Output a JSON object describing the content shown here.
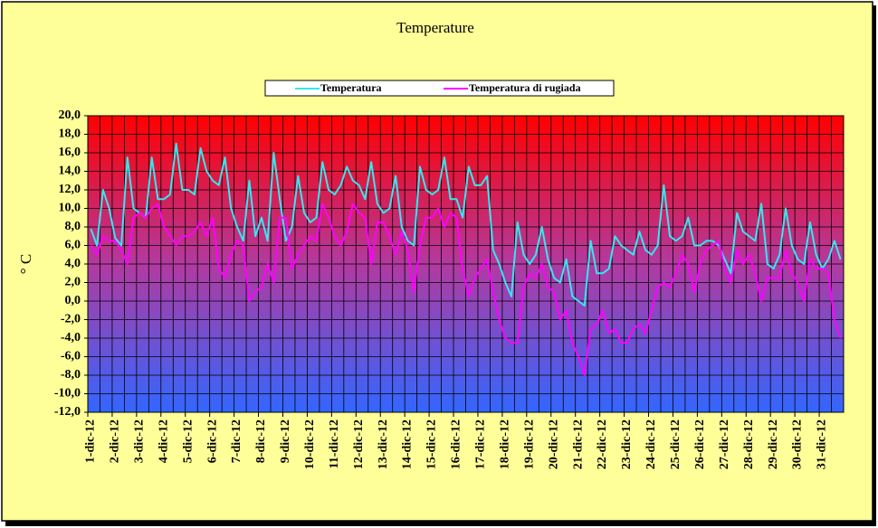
{
  "chart_data": {
    "type": "line",
    "title": "Temperature",
    "y_label": "° C",
    "legend": "top",
    "grid": true,
    "ylim": [
      -12,
      20
    ],
    "yticks": [
      {
        "value": -12,
        "label": "-12,0"
      },
      {
        "value": -10,
        "label": "-10,0"
      },
      {
        "value": -8,
        "label": "-8,0"
      },
      {
        "value": -6,
        "label": "-6,0"
      },
      {
        "value": -4,
        "label": "-4,0"
      },
      {
        "value": -2,
        "label": "-2,0"
      },
      {
        "value": 0,
        "label": "0,0"
      },
      {
        "value": 2,
        "label": "2,0"
      },
      {
        "value": 4,
        "label": "4,0"
      },
      {
        "value": 6,
        "label": "6,0"
      },
      {
        "value": 8,
        "label": "8,0"
      },
      {
        "value": 10,
        "label": "10,0"
      },
      {
        "value": 12,
        "label": "12,0"
      },
      {
        "value": 14,
        "label": "14,0"
      },
      {
        "value": 16,
        "label": "16,0"
      },
      {
        "value": 18,
        "label": "18,0"
      },
      {
        "value": 20,
        "label": "20,0"
      }
    ],
    "categories": [
      "1-dic-12",
      null,
      null,
      null,
      "2-dic-12",
      null,
      null,
      null,
      "3-dic-12",
      null,
      null,
      null,
      "4-dic-12",
      null,
      null,
      null,
      "5-dic-12",
      null,
      null,
      null,
      "6-dic-12",
      null,
      null,
      null,
      "7-dic-12",
      null,
      null,
      null,
      "8-dic-12",
      null,
      null,
      null,
      "9-dic-12",
      null,
      null,
      null,
      "10-dic-12",
      null,
      null,
      null,
      "11-dic-12",
      null,
      null,
      null,
      "12-dic-12",
      null,
      null,
      null,
      "13-dic-12",
      null,
      null,
      null,
      "14-dic-12",
      null,
      null,
      null,
      "15-dic-12",
      null,
      null,
      null,
      "16-dic-12",
      null,
      null,
      null,
      "17-dic-12",
      null,
      null,
      null,
      "18-dic-12",
      null,
      null,
      null,
      "19-dic-12",
      null,
      null,
      null,
      "20-dic-12",
      null,
      null,
      null,
      "21-dic-12",
      null,
      null,
      null,
      "22-dic-12",
      null,
      null,
      null,
      "23-dic-12",
      null,
      null,
      null,
      "24-dic-12",
      null,
      null,
      null,
      "25-dic-12",
      null,
      null,
      null,
      "26-dic-12",
      null,
      null,
      null,
      "27-dic-12",
      null,
      null,
      null,
      "28-dic-12",
      null,
      null,
      null,
      "29-dic-12",
      null,
      null,
      null,
      "30-dic-12",
      null,
      null,
      null,
      "31-dic-12",
      null,
      null,
      null
    ],
    "series": [
      {
        "name": "Temperatura",
        "color": "#33e8f0",
        "values": [
          7.8,
          6.0,
          12.0,
          10.0,
          6.8,
          6.0,
          15.5,
          10.0,
          9.5,
          9.0,
          15.5,
          11.0,
          11.0,
          11.5,
          17.0,
          12.0,
          12.0,
          11.5,
          16.5,
          14.0,
          13.0,
          12.5,
          15.5,
          10.0,
          8.0,
          6.5,
          13.0,
          7.0,
          9.0,
          6.5,
          16.0,
          11.0,
          6.5,
          8.0,
          13.5,
          9.5,
          8.5,
          9.0,
          15.0,
          12.0,
          11.5,
          12.5,
          14.5,
          13.0,
          12.5,
          11.0,
          15.0,
          10.5,
          9.5,
          10.0,
          13.5,
          8.0,
          6.5,
          6.0,
          14.5,
          12.0,
          11.5,
          12.0,
          15.5,
          11.0,
          11.0,
          9.0,
          14.5,
          12.5,
          12.5,
          13.5,
          5.5,
          4.0,
          2.0,
          0.5,
          8.5,
          5.0,
          4.0,
          5.0,
          8.0,
          4.5,
          2.5,
          2.0,
          4.5,
          0.5,
          0.0,
          -0.5,
          6.5,
          3.0,
          3.0,
          3.5,
          7.0,
          6.0,
          5.5,
          5.0,
          7.5,
          5.5,
          5.0,
          6.0,
          12.5,
          7.0,
          6.5,
          7.0,
          9.0,
          6.0,
          6.0,
          6.5,
          6.5,
          6.0,
          4.5,
          3.0,
          9.5,
          7.5,
          7.0,
          6.5,
          10.5,
          4.0,
          3.5,
          5.0,
          10.0,
          6.0,
          4.5,
          4.0,
          8.5,
          5.0,
          3.5,
          4.5,
          6.5,
          4.5
        ]
      },
      {
        "name": "Temperatura di rugiada",
        "color": "#ff00ff",
        "values": [
          6.0,
          5.0,
          7.0,
          6.5,
          6.5,
          5.5,
          4.0,
          9.0,
          9.5,
          9.0,
          10.0,
          10.5,
          8.0,
          7.0,
          6.0,
          7.0,
          7.0,
          7.5,
          8.5,
          7.0,
          9.0,
          3.5,
          2.5,
          5.0,
          6.5,
          6.0,
          0.0,
          1.0,
          1.5,
          4.0,
          2.0,
          9.0,
          9.0,
          3.5,
          5.0,
          6.0,
          7.0,
          6.5,
          10.5,
          9.0,
          7.0,
          6.0,
          7.5,
          10.5,
          9.5,
          9.0,
          4.0,
          8.5,
          8.5,
          7.0,
          5.0,
          7.5,
          5.5,
          1.0,
          6.0,
          9.0,
          9.0,
          10.0,
          8.0,
          9.5,
          9.0,
          3.5,
          0.5,
          2.5,
          3.5,
          4.5,
          1.0,
          -2.0,
          -4.0,
          -4.5,
          -4.5,
          1.5,
          3.0,
          2.5,
          4.0,
          1.5,
          1.0,
          -2.0,
          -1.0,
          -4.5,
          -6.0,
          -8.0,
          -3.0,
          -2.5,
          -1.0,
          -3.5,
          -3.0,
          -4.5,
          -4.5,
          -3.0,
          -2.5,
          -3.5,
          -1.0,
          1.5,
          2.0,
          1.5,
          3.0,
          5.0,
          4.0,
          1.0,
          4.0,
          5.5,
          6.0,
          6.5,
          3.5,
          2.0,
          5.5,
          4.0,
          5.0,
          3.0,
          0.0,
          2.5,
          2.5,
          2.5,
          5.5,
          3.0,
          2.0,
          0.0,
          4.5,
          3.5,
          3.5,
          3.0,
          -2.0,
          -4.0
        ]
      }
    ]
  }
}
